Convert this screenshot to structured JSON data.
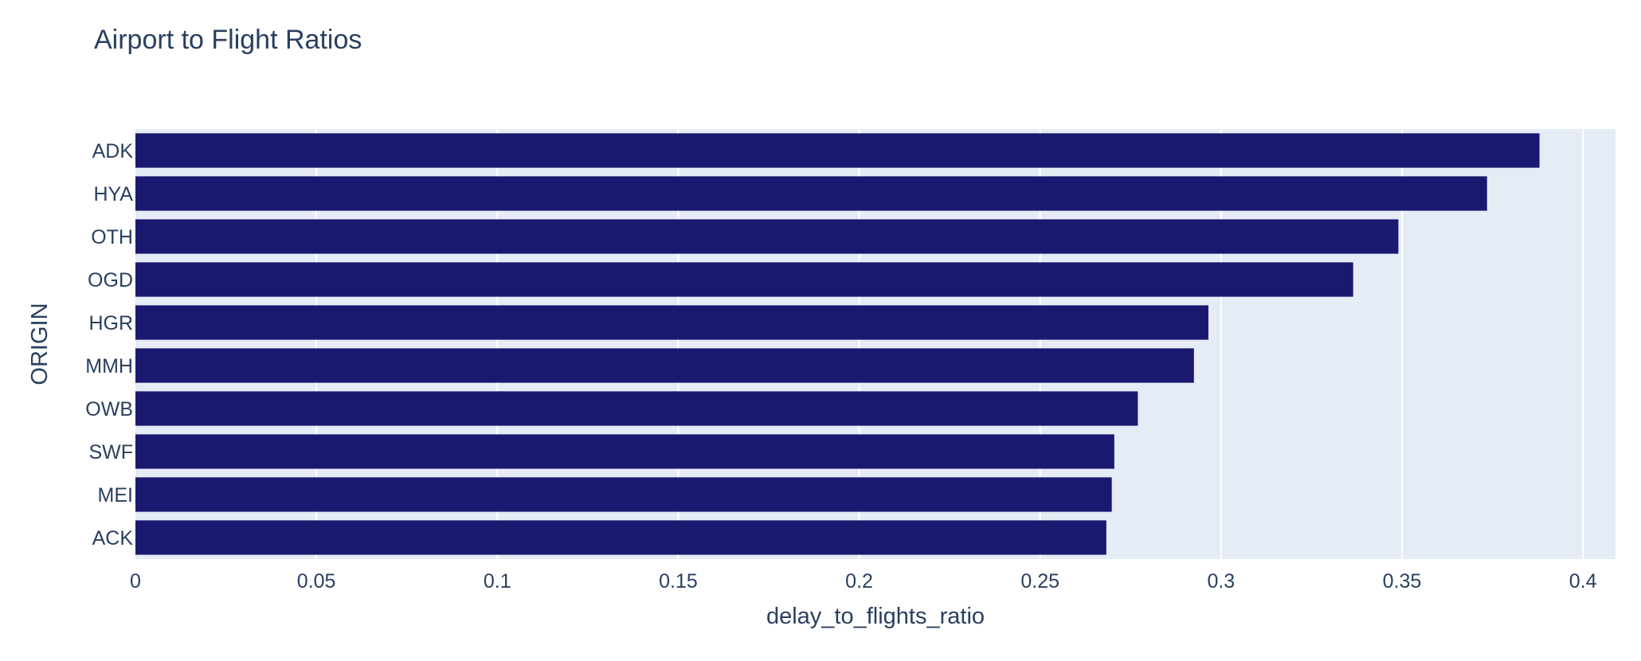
{
  "chart_data": {
    "type": "bar",
    "orientation": "horizontal",
    "title": "Airport to Flight Ratios",
    "xlabel": "delay_to_flights_ratio",
    "ylabel": "ORIGIN",
    "categories": [
      "ADK",
      "HYA",
      "OTH",
      "OGD",
      "HGR",
      "MMH",
      "OWB",
      "SWF",
      "MEI",
      "ACK"
    ],
    "values": [
      0.388,
      0.3735,
      0.349,
      0.3365,
      0.2965,
      0.2925,
      0.277,
      0.2705,
      0.2698,
      0.2683
    ],
    "xlim": [
      0,
      0.409
    ],
    "x_ticks": [
      0,
      0.05,
      0.1,
      0.15,
      0.2,
      0.25,
      0.3,
      0.35,
      0.4
    ],
    "x_tick_labels": [
      "0",
      "0.05",
      "0.1",
      "0.15",
      "0.2",
      "0.25",
      "0.3",
      "0.35",
      "0.4"
    ],
    "grid": true,
    "colors": {
      "bar": "#191970",
      "plot_bg": "#e5ecf6",
      "grid": "#ffffff",
      "text": "#2a3f5f"
    }
  }
}
